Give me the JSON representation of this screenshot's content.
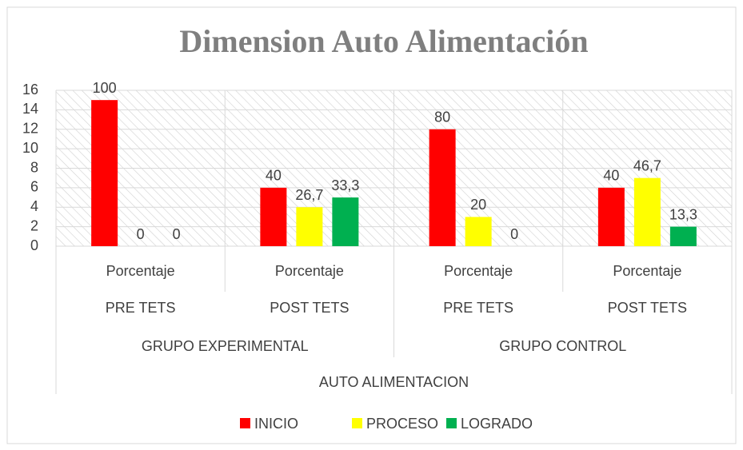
{
  "chart_data": {
    "type": "bar",
    "title": "Dimension Auto Alimentación",
    "categories": [
      "Porcentaje",
      "Porcentaje",
      "Porcentaje",
      "Porcentaje"
    ],
    "tests": [
      "PRE TETS",
      "POST TETS",
      "PRE TETS",
      "POST TETS"
    ],
    "groups": [
      "GRUPO EXPERIMENTAL",
      "GRUPO CONTROL"
    ],
    "dimension": "AUTO ALIMENTACION",
    "series": [
      {
        "name": "INICIO",
        "color": "#ff0000",
        "values": [
          15,
          6,
          12,
          6
        ],
        "percent": [
          100,
          40,
          80,
          40
        ]
      },
      {
        "name": "PROCESO",
        "color": "#ffff00",
        "values": [
          0,
          4,
          3,
          7
        ],
        "percent": [
          0,
          {
            "value": 26.7,
            "label": "26,7"
          },
          20,
          {
            "value": 46.7,
            "label": "46,7"
          }
        ]
      },
      {
        "name": "LOGRADO",
        "color": "#00b050",
        "values": [
          0,
          5,
          0,
          2
        ],
        "percent": [
          0,
          {
            "value": 33.3,
            "label": "33,3"
          },
          0,
          {
            "value": 13.3,
            "label": "13,3"
          }
        ]
      }
    ],
    "ylim": [
      0,
      16
    ],
    "yticks": [
      0,
      2,
      4,
      6,
      8,
      10,
      12,
      14,
      16
    ],
    "grid": true,
    "legend": "bottom"
  }
}
